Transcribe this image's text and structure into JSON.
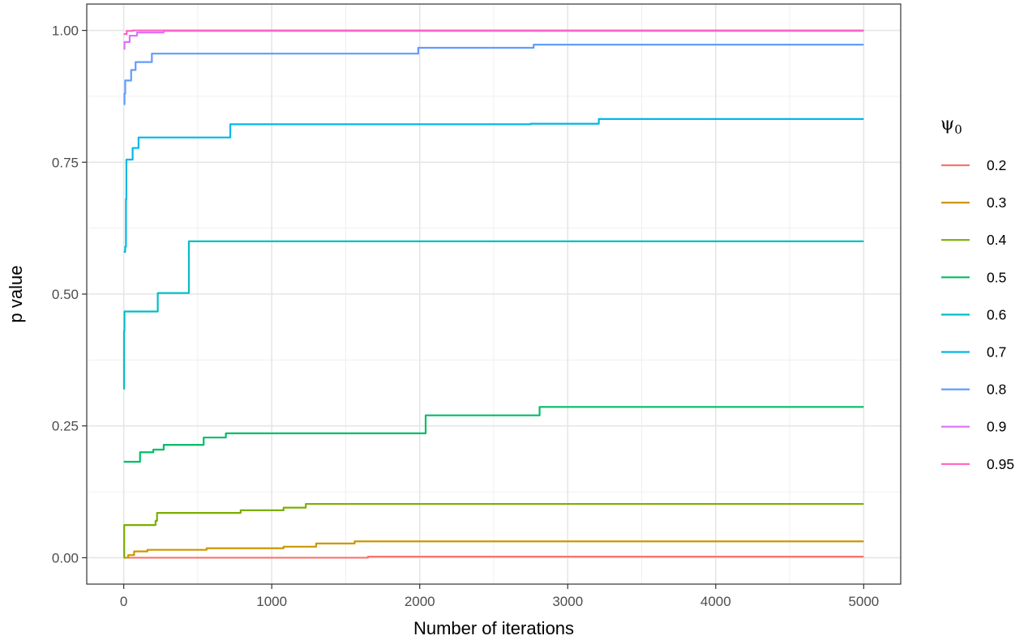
{
  "chart_data": {
    "type": "line",
    "xlabel": "Number of iterations",
    "ylabel": "p value",
    "xlim": [
      -250,
      5250
    ],
    "ylim": [
      -0.05,
      1.05
    ],
    "x_ticks": [
      0,
      1000,
      2000,
      3000,
      4000,
      5000
    ],
    "x_tick_labels": [
      "0",
      "1000",
      "2000",
      "3000",
      "4000",
      "5000"
    ],
    "y_ticks": [
      0,
      0.25,
      0.5,
      0.75,
      1.0
    ],
    "y_tick_labels": [
      "0.00",
      "0.25",
      "0.50",
      "0.75",
      "1.00"
    ],
    "grid": true,
    "legend": {
      "title_symbol": "ψ",
      "title_subscript": "0",
      "placement": "right"
    },
    "series": [
      {
        "name": "0.2",
        "color": "#F8766D",
        "values": [
          [
            0,
            0.0
          ],
          [
            1650,
            0.0
          ],
          [
            1650,
            0.002
          ],
          [
            5000,
            0.002
          ]
        ]
      },
      {
        "name": "0.3",
        "color": "#CD9600",
        "values": [
          [
            0,
            0.0
          ],
          [
            30,
            0.0
          ],
          [
            30,
            0.005
          ],
          [
            70,
            0.005
          ],
          [
            70,
            0.012
          ],
          [
            160,
            0.012
          ],
          [
            160,
            0.015
          ],
          [
            560,
            0.015
          ],
          [
            560,
            0.018
          ],
          [
            1080,
            0.018
          ],
          [
            1080,
            0.021
          ],
          [
            1300,
            0.021
          ],
          [
            1300,
            0.027
          ],
          [
            1560,
            0.027
          ],
          [
            1560,
            0.031
          ],
          [
            5000,
            0.031
          ]
        ]
      },
      {
        "name": "0.4",
        "color": "#7CAE00",
        "values": [
          [
            0,
            0.0
          ],
          [
            3,
            0.0
          ],
          [
            3,
            0.062
          ],
          [
            215,
            0.062
          ],
          [
            215,
            0.07
          ],
          [
            225,
            0.07
          ],
          [
            225,
            0.085
          ],
          [
            790,
            0.085
          ],
          [
            790,
            0.09
          ],
          [
            1080,
            0.09
          ],
          [
            1080,
            0.095
          ],
          [
            1230,
            0.095
          ],
          [
            1230,
            0.102
          ],
          [
            5000,
            0.102
          ]
        ]
      },
      {
        "name": "0.5",
        "color": "#00BE67",
        "values": [
          [
            0,
            0.182
          ],
          [
            110,
            0.182
          ],
          [
            110,
            0.2
          ],
          [
            200,
            0.2
          ],
          [
            200,
            0.205
          ],
          [
            270,
            0.205
          ],
          [
            270,
            0.214
          ],
          [
            540,
            0.214
          ],
          [
            540,
            0.228
          ],
          [
            690,
            0.228
          ],
          [
            690,
            0.236
          ],
          [
            2040,
            0.236
          ],
          [
            2040,
            0.27
          ],
          [
            2810,
            0.27
          ],
          [
            2810,
            0.286
          ],
          [
            5000,
            0.286
          ]
        ]
      },
      {
        "name": "0.6",
        "color": "#00BFC4",
        "values": [
          [
            0,
            0.32
          ],
          [
            2,
            0.32
          ],
          [
            2,
            0.43
          ],
          [
            5,
            0.43
          ],
          [
            5,
            0.467
          ],
          [
            230,
            0.467
          ],
          [
            230,
            0.502
          ],
          [
            440,
            0.502
          ],
          [
            440,
            0.6
          ],
          [
            5000,
            0.6
          ]
        ]
      },
      {
        "name": "0.7",
        "color": "#00B8E7",
        "values": [
          [
            0,
            0.58
          ],
          [
            10,
            0.58
          ],
          [
            10,
            0.59
          ],
          [
            15,
            0.59
          ],
          [
            15,
            0.68
          ],
          [
            18,
            0.68
          ],
          [
            18,
            0.755
          ],
          [
            60,
            0.755
          ],
          [
            60,
            0.777
          ],
          [
            100,
            0.777
          ],
          [
            100,
            0.797
          ],
          [
            720,
            0.797
          ],
          [
            720,
            0.822
          ],
          [
            2750,
            0.822
          ],
          [
            2750,
            0.823
          ],
          [
            3210,
            0.823
          ],
          [
            3210,
            0.832
          ],
          [
            5000,
            0.832
          ]
        ]
      },
      {
        "name": "0.8",
        "color": "#619CFF",
        "values": [
          [
            0,
            0.86
          ],
          [
            5,
            0.86
          ],
          [
            5,
            0.88
          ],
          [
            10,
            0.88
          ],
          [
            10,
            0.905
          ],
          [
            50,
            0.905
          ],
          [
            50,
            0.925
          ],
          [
            80,
            0.925
          ],
          [
            80,
            0.94
          ],
          [
            190,
            0.94
          ],
          [
            190,
            0.956
          ],
          [
            1990,
            0.956
          ],
          [
            1990,
            0.967
          ],
          [
            2770,
            0.967
          ],
          [
            2770,
            0.973
          ],
          [
            5000,
            0.973
          ]
        ]
      },
      {
        "name": "0.9",
        "color": "#DB72FB",
        "values": [
          [
            0,
            0.965
          ],
          [
            5,
            0.965
          ],
          [
            5,
            0.978
          ],
          [
            40,
            0.978
          ],
          [
            40,
            0.99
          ],
          [
            90,
            0.99
          ],
          [
            90,
            0.996
          ],
          [
            270,
            0.996
          ],
          [
            270,
            0.999
          ],
          [
            5000,
            0.999
          ]
        ]
      },
      {
        "name": "0.95",
        "color": "#FF61C3",
        "values": [
          [
            0,
            0.993
          ],
          [
            20,
            0.993
          ],
          [
            20,
            0.999
          ],
          [
            60,
            0.999
          ],
          [
            60,
            1.0
          ],
          [
            5000,
            1.0
          ]
        ]
      }
    ]
  }
}
